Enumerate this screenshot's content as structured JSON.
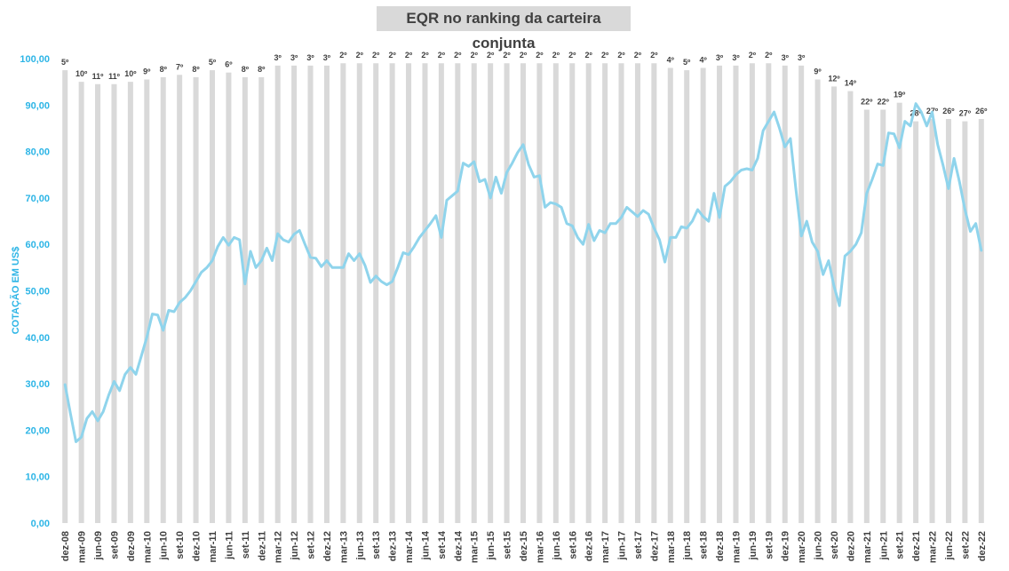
{
  "colors": {
    "bar": "#d9d9d9",
    "line": "#8fd4ec",
    "axis_text": "#2db5e6",
    "rank_text": "#404040",
    "tick_text": "#404040",
    "title_bg": "#d9d9d9"
  },
  "chart_data": {
    "type": "bar+line",
    "title": "EQR no ranking da carteira conjunta",
    "ylabel": "COTAÇÃO EM US$",
    "ylim": [
      0,
      100
    ],
    "ytick_labels": [
      "0,00",
      "10,00",
      "20,00",
      "30,00",
      "40,00",
      "50,00",
      "60,00",
      "70,00",
      "80,00",
      "90,00",
      "100,00"
    ],
    "x_tick_labels": [
      "dez-08",
      "mar-09",
      "jun-09",
      "set-09",
      "dez-09",
      "mar-10",
      "jun-10",
      "set-10",
      "dez-10",
      "mar-11",
      "jun-11",
      "set-11",
      "dez-11",
      "mar-12",
      "jun-12",
      "set-12",
      "dez-12",
      "mar-13",
      "jun-13",
      "set-13",
      "dez-13",
      "mar-14",
      "jun-14",
      "set-14",
      "dez-14",
      "mar-15",
      "jun-15",
      "set-15",
      "dez-15",
      "mar-16",
      "jun-16",
      "set-16",
      "dez-16",
      "mar-17",
      "jun-17",
      "set-17",
      "dez-17",
      "mar-18",
      "jun-18",
      "set-18",
      "dez-18",
      "mar-19",
      "jun-19",
      "set-19",
      "dez-19",
      "mar-20",
      "jun-20",
      "set-20",
      "dez-20",
      "mar-21",
      "jun-21",
      "set-21",
      "dez-21",
      "mar-22",
      "jun-22",
      "set-22",
      "dez-22"
    ],
    "ranking_bars": {
      "labels": [
        "5º",
        "10º",
        "11º",
        "11º",
        "10º",
        "9º",
        "8º",
        "7º",
        "8º",
        "5º",
        "6º",
        "8º",
        "8º",
        "3º",
        "3º",
        "3º",
        "3º",
        "2º",
        "2º",
        "2º",
        "2º",
        "2º",
        "2º",
        "2º",
        "2º",
        "2º",
        "2º",
        "2º",
        "2º",
        "2º",
        "2º",
        "2º",
        "2º",
        "2º",
        "2º",
        "2º",
        "2º",
        "4º",
        "5º",
        "4º",
        "3º",
        "3º",
        "2º",
        "2º",
        "3º",
        "3º",
        "9º",
        "12º",
        "14º",
        "22º",
        "22º",
        "19º",
        "28º",
        "27º",
        "26º",
        "27º",
        "26º"
      ],
      "values": [
        97.5,
        95,
        94.5,
        94.5,
        95,
        95.5,
        96,
        96.5,
        96,
        97.5,
        97,
        96,
        96,
        98.5,
        98.5,
        98.5,
        98.5,
        99,
        99,
        99,
        99,
        99,
        99,
        99,
        99,
        99,
        99,
        99,
        99,
        99,
        99,
        99,
        99,
        99,
        99,
        99,
        99,
        98,
        97.5,
        98,
        98.5,
        98.5,
        99,
        99,
        98.5,
        98.5,
        95.5,
        94,
        93,
        89,
        89,
        90.5,
        86.5,
        87,
        87,
        86.5,
        87
      ]
    },
    "price_series": {
      "values": [
        29.8,
        23.5,
        17.5,
        18.5,
        22.5,
        24,
        22,
        24,
        27.5,
        30.5,
        28.5,
        32,
        33.5,
        32,
        36,
        40,
        45,
        44.8,
        41.5,
        45.8,
        45.5,
        47.5,
        48.5,
        50,
        52,
        54,
        55,
        56.5,
        59.5,
        61.5,
        59.8,
        61.5,
        61,
        51.5,
        58.5,
        55,
        56.5,
        59.2,
        56.5,
        62.3,
        61,
        60.5,
        62.2,
        63,
        60,
        57.2,
        57,
        55.2,
        56.5,
        55,
        55,
        55,
        58,
        56.5,
        58,
        55.5,
        51.8,
        53.2,
        52,
        51.3,
        52,
        55,
        58.2,
        57.8,
        59.5,
        61.5,
        63,
        64.5,
        66.2,
        61.5,
        69.5,
        70.5,
        71.5,
        77.5,
        76.8,
        77.8,
        73.5,
        74,
        70,
        74.5,
        71,
        75.5,
        77.5,
        79.8,
        81.5,
        77.2,
        74.5,
        74.8,
        68,
        69,
        68.7,
        68,
        64.5,
        64,
        61.5,
        60,
        64.3,
        60.8,
        63,
        62.5,
        64.5,
        64.5,
        65.8,
        68,
        67,
        66,
        67.3,
        66.5,
        63.5,
        61,
        56.2,
        61.5,
        61.5,
        63.8,
        63.5,
        65,
        67.5,
        66,
        65,
        71,
        65.8,
        72.5,
        73.5,
        75,
        76,
        76.3,
        76,
        78.5,
        84.5,
        86.5,
        88.5,
        85,
        81,
        82.8,
        72,
        61.8,
        65,
        60.5,
        58.5,
        53.5,
        56.5,
        51,
        46.8,
        57.5,
        58.5,
        60,
        62.5,
        71,
        74,
        77.3,
        77,
        84,
        83.8,
        80.8,
        86.5,
        85.5,
        90.3,
        88.5,
        85.5,
        88.5,
        81.5,
        77,
        72,
        78.5,
        73.5,
        67.5,
        62.8,
        64.5,
        58.7
      ]
    }
  }
}
